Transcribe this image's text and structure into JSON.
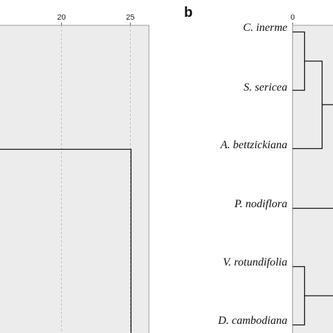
{
  "panel_a": {
    "x_ticks": [
      "20",
      "25"
    ],
    "colors": {
      "background": "#ececec",
      "frame": "#9a9a9a",
      "grid": "#bdbdbd",
      "tree": "#111111"
    }
  },
  "panel_b": {
    "panel_label": "b",
    "x_tick": "0",
    "taxa": [
      "C. inerme",
      "S. sericea",
      "A. bettzickiana",
      "P. nodiflora",
      "V. rotundifolia",
      "D. cambodiana"
    ],
    "colors": {
      "background": "#ececec",
      "frame": "#9a9a9a",
      "tree": "#111111"
    }
  }
}
